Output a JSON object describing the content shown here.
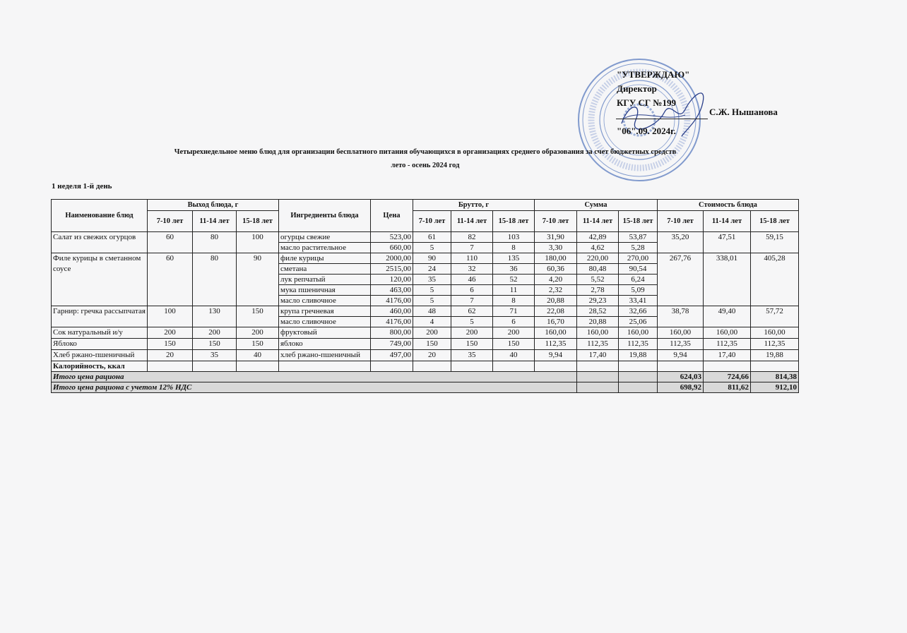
{
  "approval": {
    "line1": "\"УТВЕРЖДАЮ\"",
    "line2": "Директор",
    "line3": "КГУ СГ №199",
    "signer": "С.Ж. Нышанова",
    "date": "\"06\".09. 2024г."
  },
  "title": "Четырехнедельное меню блюд для организации бесплатного питания обучающихся в организациях среднего образования за счет бюджетных средств",
  "subtitle": "лето - осень 2024 год",
  "week_day": "1 неделя 1-й день",
  "headers": {
    "dish": "Наименование блюд",
    "yield": "Выход блюда, г",
    "ingredients": "Ингредиенты блюда",
    "price": "Цена",
    "brutto": "Брутто, г",
    "sum": "Сумма",
    "cost": "Стоимость блюда",
    "ages": [
      "7-10 лет",
      "11-14 лет",
      "15-18 лет"
    ]
  },
  "dishes": [
    {
      "name": "Салат из свежих огурцов",
      "yield": [
        "60",
        "80",
        "100"
      ],
      "cost": [
        "35,20",
        "47,51",
        "59,15"
      ],
      "ingredients": [
        {
          "name": "огурцы свежие",
          "price": "523,00",
          "brutto": [
            "61",
            "82",
            "103"
          ],
          "sum": [
            "31,90",
            "42,89",
            "53,87"
          ]
        },
        {
          "name": "масло растительное",
          "price": "660,00",
          "brutto": [
            "5",
            "7",
            "8"
          ],
          "sum": [
            "3,30",
            "4,62",
            "5,28"
          ]
        }
      ]
    },
    {
      "name": "Филе курицы в сметанном соусе",
      "yield": [
        "60",
        "80",
        "90"
      ],
      "cost": [
        "267,76",
        "338,01",
        "405,28"
      ],
      "ingredients": [
        {
          "name": "филе курицы",
          "price": "2000,00",
          "brutto": [
            "90",
            "110",
            "135"
          ],
          "sum": [
            "180,00",
            "220,00",
            "270,00"
          ]
        },
        {
          "name": "сметана",
          "price": "2515,00",
          "brutto": [
            "24",
            "32",
            "36"
          ],
          "sum": [
            "60,36",
            "80,48",
            "90,54"
          ]
        },
        {
          "name": "лук репчатый",
          "price": "120,00",
          "brutto": [
            "35",
            "46",
            "52"
          ],
          "sum": [
            "4,20",
            "5,52",
            "6,24"
          ]
        },
        {
          "name": "мука пшеничная",
          "price": "463,00",
          "brutto": [
            "5",
            "6",
            "11"
          ],
          "sum": [
            "2,32",
            "2,78",
            "5,09"
          ]
        },
        {
          "name": "масло сливочное",
          "price": "4176,00",
          "brutto": [
            "5",
            "7",
            "8"
          ],
          "sum": [
            "20,88",
            "29,23",
            "33,41"
          ]
        }
      ]
    },
    {
      "name": "Гарнир: гречка рассыпчатая",
      "yield": [
        "100",
        "130",
        "150"
      ],
      "cost": [
        "38,78",
        "49,40",
        "57,72"
      ],
      "ingredients": [
        {
          "name": "крупа гречневая",
          "price": "460,00",
          "brutto": [
            "48",
            "62",
            "71"
          ],
          "sum": [
            "22,08",
            "28,52",
            "32,66"
          ]
        },
        {
          "name": "масло сливочное",
          "price": "4176,00",
          "brutto": [
            "4",
            "5",
            "6"
          ],
          "sum": [
            "16,70",
            "20,88",
            "25,06"
          ]
        }
      ]
    },
    {
      "name": "Сок натуральный и/у",
      "yield": [
        "200",
        "200",
        "200"
      ],
      "cost": [
        "160,00",
        "160,00",
        "160,00"
      ],
      "ingredients": [
        {
          "name": "фруктовый",
          "price": "800,00",
          "brutto": [
            "200",
            "200",
            "200"
          ],
          "sum": [
            "160,00",
            "160,00",
            "160,00"
          ]
        }
      ]
    },
    {
      "name": "Яблоко",
      "yield": [
        "150",
        "150",
        "150"
      ],
      "cost": [
        "112,35",
        "112,35",
        "112,35"
      ],
      "ingredients": [
        {
          "name": "яблоко",
          "price": "749,00",
          "brutto": [
            "150",
            "150",
            "150"
          ],
          "sum": [
            "112,35",
            "112,35",
            "112,35"
          ]
        }
      ]
    },
    {
      "name": "Хлеб ржано-пшеничный",
      "yield": [
        "20",
        "35",
        "40"
      ],
      "cost": [
        "9,94",
        "17,40",
        "19,88"
      ],
      "ingredients": [
        {
          "name": "хлеб ржано-пшеничный",
          "price": "497,00",
          "brutto": [
            "20",
            "35",
            "40"
          ],
          "sum": [
            "9,94",
            "17,40",
            "19,88"
          ]
        }
      ]
    }
  ],
  "calories_label": "Калорийность, ккал",
  "totals": [
    {
      "label": "Итого цена рациона",
      "values": [
        "624,03",
        "724,66",
        "814,38"
      ]
    },
    {
      "label": "Итого цена рациона с учетом 12% НДС",
      "values": [
        "698,92",
        "811,62",
        "912,10"
      ]
    }
  ],
  "colors": {
    "stamp": "#4a6fb5",
    "total_row_bg": "#d9d9d9"
  }
}
